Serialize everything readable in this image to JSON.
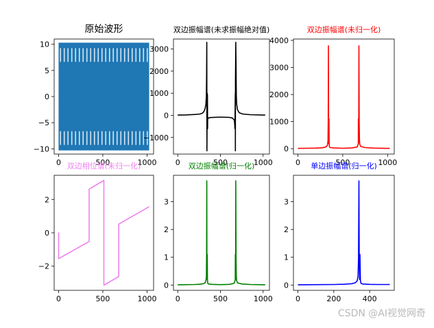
{
  "watermark": "CSDN @AI视觉网奇",
  "chart_data": [
    {
      "type": "line",
      "title": "原始波形",
      "title_color": "#000000",
      "series": [
        {
          "color": "#1f77b4",
          "x": [
            0,
            1024
          ],
          "envelope_max": [
            10.3,
            10.3
          ],
          "envelope_min": [
            -10.3,
            -10.3
          ]
        }
      ],
      "xlim": [
        -50,
        1074
      ],
      "ylim": [
        -11,
        11
      ],
      "xticks": [
        0,
        500,
        1000
      ],
      "yticks": [
        -10,
        -5,
        0,
        5,
        10
      ],
      "tick_labels_x": [
        "0",
        "500",
        "1000"
      ],
      "tick_labels_y": [
        "−10",
        "−5",
        "0",
        "5",
        "10"
      ]
    },
    {
      "type": "line",
      "title": "双边振幅谱(未求振幅绝对值)",
      "title_color": "#000000",
      "series": [
        {
          "color": "#000000",
          "x": [
            0,
            100,
            200,
            260,
            290,
            300,
            310,
            320,
            330,
            335,
            338,
            340,
            341,
            342,
            345,
            348,
            350,
            351,
            352,
            355,
            360,
            380,
            420,
            500,
            600,
            640,
            660,
            665,
            670,
            673,
            674,
            675,
            676,
            680,
            684,
            686,
            690,
            700,
            720,
            760,
            850,
            1024
          ],
          "y": [
            10,
            20,
            40,
            60,
            100,
            140,
            200,
            300,
            500,
            900,
            1800,
            3300,
            1500,
            -1600,
            1000,
            900,
            -600,
            -200,
            -150,
            -140,
            -120,
            -100,
            -90,
            -80,
            -90,
            -120,
            -200,
            -300,
            -600,
            900,
            1000,
            -1600,
            1500,
            3300,
            1800,
            900,
            500,
            250,
            120,
            60,
            30,
            10
          ]
        }
      ],
      "xlim": [
        -50,
        1074
      ],
      "ylim": [
        -1750,
        3450
      ],
      "xticks": [
        0,
        500,
        1000
      ],
      "yticks": [
        -1000,
        0,
        1000,
        2000,
        3000
      ],
      "tick_labels_x": [
        "0",
        "500",
        "1000"
      ],
      "tick_labels_y": [
        "−1000",
        "0",
        "1000",
        "2000",
        "3000"
      ]
    },
    {
      "type": "line",
      "title": "双边振幅谱(未归一化)",
      "title_color": "#ff0000",
      "series": [
        {
          "color": "#ff0000",
          "x": [
            0,
            100,
            200,
            260,
            300,
            320,
            330,
            335,
            338,
            340,
            342,
            344,
            346,
            348,
            350,
            352,
            360,
            400,
            500,
            600,
            660,
            670,
            673,
            674,
            676,
            678,
            680,
            683,
            686,
            690,
            700,
            750,
            850,
            1024
          ],
          "y": [
            10,
            15,
            20,
            30,
            50,
            80,
            150,
            300,
            1000,
            3800,
            800,
            200,
            1100,
            200,
            100,
            60,
            40,
            25,
            15,
            25,
            60,
            150,
            200,
            1100,
            200,
            800,
            3800,
            1000,
            300,
            150,
            80,
            40,
            20,
            10
          ]
        }
      ],
      "xlim": [
        -50,
        1074
      ],
      "ylim": [
        -200,
        4050
      ],
      "xticks": [
        0,
        500,
        1000
      ],
      "yticks": [
        0,
        1000,
        2000,
        3000,
        4000
      ],
      "tick_labels_x": [
        "0",
        "500",
        "1000"
      ],
      "tick_labels_y": [
        "0",
        "1000",
        "2000",
        "3000",
        "4000"
      ]
    },
    {
      "type": "line",
      "title": "双边相位谱(未归一化)",
      "title_color": "#ee82ee",
      "series": [
        {
          "color": "#ee82ee",
          "x": [
            0,
            0,
            345,
            345,
            512,
            512,
            680,
            680,
            1024
          ],
          "y": [
            0.02,
            -1.55,
            -0.52,
            2.62,
            3.14,
            -3.14,
            -2.62,
            0.52,
            1.57
          ]
        }
      ],
      "xlim": [
        -50,
        1074
      ],
      "ylim": [
        -3.45,
        3.45
      ],
      "xticks": [
        0,
        500,
        1000
      ],
      "yticks": [
        -2,
        0,
        2
      ],
      "tick_labels_x": [
        "0",
        "500",
        "1000"
      ],
      "tick_labels_y": [
        "−2",
        "0",
        "2"
      ]
    },
    {
      "type": "line",
      "title": "双边振幅谱(归一化)",
      "title_color": "#008000",
      "series": [
        {
          "color": "#008000",
          "x": [
            0,
            100,
            200,
            260,
            300,
            320,
            330,
            335,
            338,
            340,
            342,
            344,
            346,
            348,
            350,
            352,
            360,
            400,
            500,
            600,
            660,
            670,
            673,
            674,
            676,
            678,
            680,
            683,
            686,
            690,
            700,
            750,
            850,
            1024
          ],
          "y": [
            0.01,
            0.015,
            0.02,
            0.03,
            0.05,
            0.08,
            0.15,
            0.3,
            1.0,
            3.75,
            0.8,
            0.2,
            1.1,
            0.2,
            0.1,
            0.06,
            0.04,
            0.025,
            0.015,
            0.025,
            0.06,
            0.15,
            0.2,
            1.1,
            0.2,
            0.8,
            3.75,
            1.0,
            0.3,
            0.15,
            0.08,
            0.04,
            0.02,
            0.01
          ]
        }
      ],
      "xlim": [
        -50,
        1074
      ],
      "ylim": [
        -0.19,
        3.95
      ],
      "xticks": [
        0,
        500,
        1000
      ],
      "yticks": [
        0,
        1,
        2,
        3
      ],
      "tick_labels_x": [
        "0",
        "500",
        "1000"
      ],
      "tick_labels_y": [
        "0",
        "1",
        "2",
        "3"
      ]
    },
    {
      "type": "line",
      "title": "单边振幅谱(归一化)",
      "title_color": "#0000ff",
      "series": [
        {
          "color": "#0000ff",
          "x": [
            0,
            100,
            200,
            260,
            300,
            320,
            330,
            335,
            338,
            340,
            342,
            344,
            346,
            348,
            350,
            352,
            360,
            400,
            450,
            512
          ],
          "y": [
            0.01,
            0.015,
            0.02,
            0.03,
            0.05,
            0.08,
            0.15,
            0.3,
            1.0,
            3.75,
            0.8,
            0.2,
            1.1,
            0.2,
            0.1,
            0.06,
            0.04,
            0.025,
            0.02,
            0.02
          ]
        }
      ],
      "xlim": [
        -25,
        537
      ],
      "ylim": [
        -0.19,
        3.95
      ],
      "xticks": [
        0,
        200,
        400
      ],
      "yticks": [
        0,
        1,
        2,
        3
      ],
      "tick_labels_x": [
        "0",
        "200",
        "400"
      ],
      "tick_labels_y": [
        "0",
        "1",
        "2",
        "3"
      ]
    }
  ]
}
